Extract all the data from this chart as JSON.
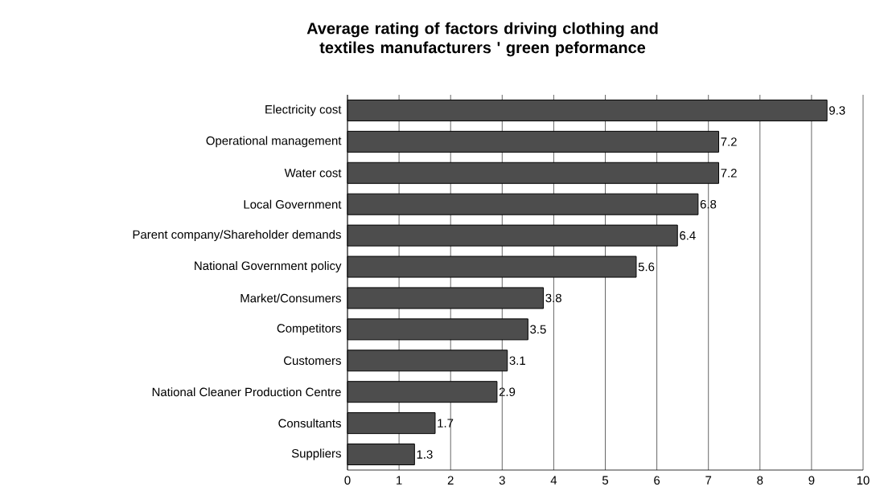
{
  "chart_data": {
    "type": "bar",
    "orientation": "horizontal",
    "title": "Average rating of factors driving clothing and textiles manufacturers ' green peformance",
    "categories": [
      "Electricity cost",
      "Operational management",
      "Water cost",
      "Local Government",
      "Parent company/Shareholder demands",
      "National Government policy",
      "Market/Consumers",
      "Competitors",
      "Customers",
      "National Cleaner Production Centre",
      "Consultants",
      "Suppliers"
    ],
    "values": [
      9.3,
      7.2,
      7.2,
      6.8,
      6.4,
      5.6,
      3.8,
      3.5,
      3.1,
      2.9,
      1.7,
      1.3
    ],
    "color": "#4d4d4d",
    "xlim": [
      0,
      10
    ],
    "xticks": [
      0,
      1,
      2,
      3,
      4,
      5,
      6,
      7,
      8,
      9,
      10
    ],
    "grid": "x",
    "data_labels": true
  }
}
